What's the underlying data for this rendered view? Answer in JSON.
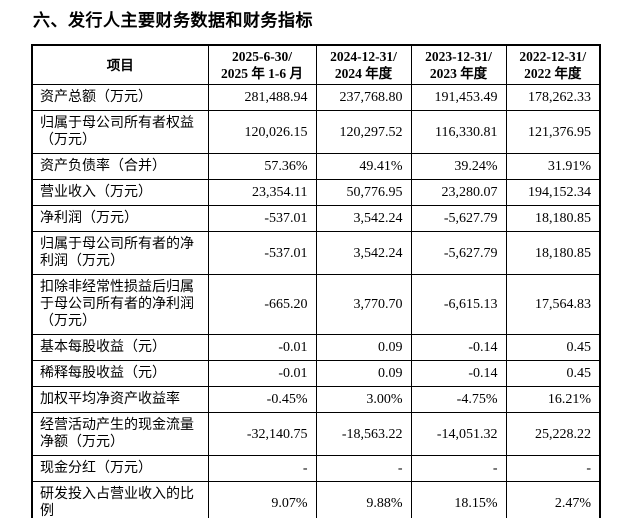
{
  "page": {
    "title": "六、发行人主要财务数据和财务指标"
  },
  "table": {
    "header": {
      "item_label": "项目",
      "periods": [
        {
          "line1": "2025-6-30/",
          "line2": "2025 年 1-6 月"
        },
        {
          "line1": "2024-12-31/",
          "line2": "2024 年度"
        },
        {
          "line1": "2023-12-31/",
          "line2": "2023 年度"
        },
        {
          "line1": "2022-12-31/",
          "line2": "2022 年度"
        }
      ]
    },
    "rows": [
      {
        "label": "资产总额（万元）",
        "values": [
          "281,488.94",
          "237,768.80",
          "191,453.49",
          "178,262.33"
        ]
      },
      {
        "label": "归属于母公司所有者权益（万元）",
        "values": [
          "120,026.15",
          "120,297.52",
          "116,330.81",
          "121,376.95"
        ]
      },
      {
        "label": "资产负债率（合并）",
        "values": [
          "57.36%",
          "49.41%",
          "39.24%",
          "31.91%"
        ]
      },
      {
        "label": "营业收入（万元）",
        "values": [
          "23,354.11",
          "50,776.95",
          "23,280.07",
          "194,152.34"
        ]
      },
      {
        "label": "净利润（万元）",
        "values": [
          "-537.01",
          "3,542.24",
          "-5,627.79",
          "18,180.85"
        ]
      },
      {
        "label": "归属于母公司所有者的净利润（万元）",
        "values": [
          "-537.01",
          "3,542.24",
          "-5,627.79",
          "18,180.85"
        ]
      },
      {
        "label": "扣除非经常性损益后归属于母公司所有者的净利润（万元）",
        "values": [
          "-665.20",
          "3,770.70",
          "-6,615.13",
          "17,564.83"
        ]
      },
      {
        "label": "基本每股收益（元）",
        "values": [
          "-0.01",
          "0.09",
          "-0.14",
          "0.45"
        ]
      },
      {
        "label": "稀释每股收益（元）",
        "values": [
          "-0.01",
          "0.09",
          "-0.14",
          "0.45"
        ]
      },
      {
        "label": "加权平均净资产收益率",
        "values": [
          "-0.45%",
          "3.00%",
          "-4.75%",
          "16.21%"
        ]
      },
      {
        "label": "经营活动产生的现金流量净额（万元）",
        "values": [
          "-32,140.75",
          "-18,563.22",
          "-14,051.32",
          "25,228.22"
        ]
      },
      {
        "label": "现金分红（万元）",
        "values": [
          "-",
          "-",
          "-",
          "-"
        ]
      },
      {
        "label": "研发投入占营业收入的比例",
        "values": [
          "9.07%",
          "9.88%",
          "18.15%",
          "2.47%"
        ]
      }
    ],
    "colors": {
      "border": "#000000",
      "text": "#000000",
      "background": "#ffffff"
    }
  }
}
